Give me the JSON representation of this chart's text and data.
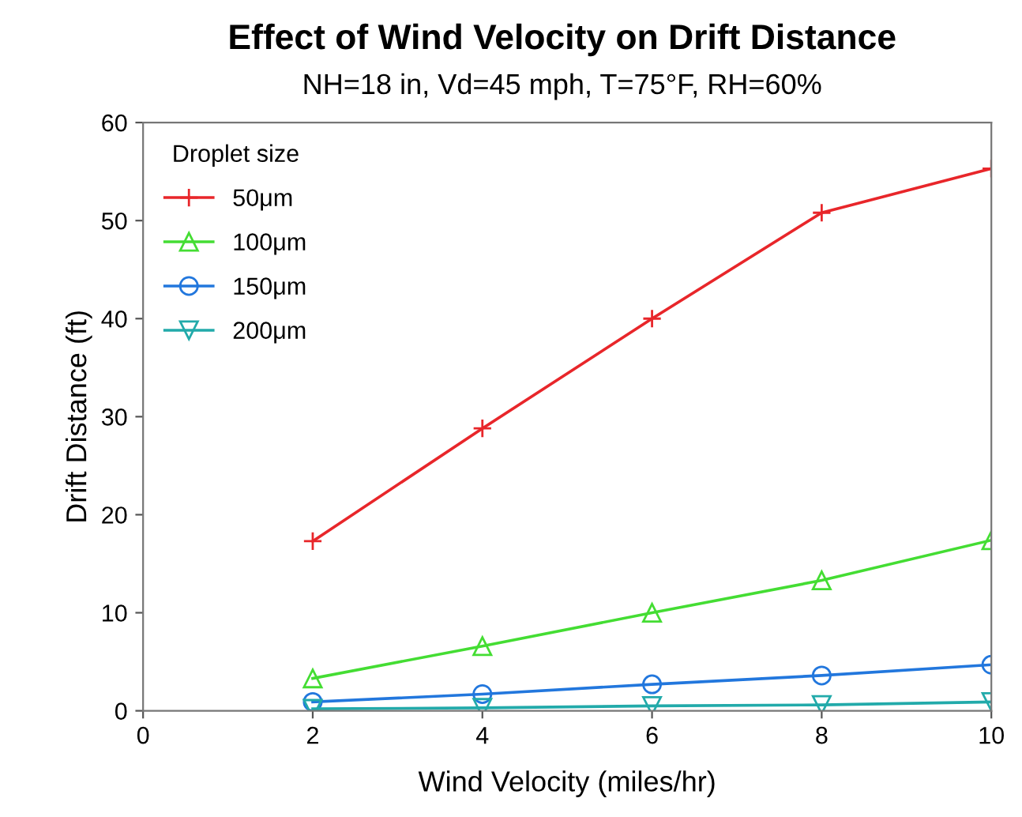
{
  "chart_data": {
    "type": "line",
    "title": "Effect of Wind Velocity on Drift Distance",
    "subtitle": "NH=18 in, Vd=45 mph, T=75°F, RH=60%",
    "xlabel": "Wind Velocity (miles/hr)",
    "ylabel": "Drift Distance (ft)",
    "legend_title": "Droplet size",
    "x": [
      2,
      4,
      6,
      8,
      10
    ],
    "series": [
      {
        "name": "50μm",
        "color": "#e8262a",
        "marker": "cross",
        "values": [
          17.3,
          28.8,
          40,
          50.8,
          55.3
        ]
      },
      {
        "name": "100μm",
        "color": "#44dd33",
        "marker": "triangle",
        "values": [
          3.3,
          6.6,
          10,
          13.3,
          17.4
        ]
      },
      {
        "name": "150μm",
        "color": "#2277dd",
        "marker": "circle",
        "values": [
          0.9,
          1.7,
          2.7,
          3.6,
          4.7
        ]
      },
      {
        "name": "200μm",
        "color": "#22aaaa",
        "marker": "triangle_down",
        "values": [
          0.2,
          0.3,
          0.5,
          0.6,
          0.9
        ]
      }
    ],
    "xlim": [
      0,
      10
    ],
    "xticks": [
      0,
      2,
      4,
      6,
      8,
      10
    ],
    "ylim": [
      0,
      60
    ],
    "yticks": [
      0,
      10,
      20,
      30,
      40,
      50,
      60
    ],
    "grid": false,
    "legend": "top left",
    "line_style": "solid"
  }
}
